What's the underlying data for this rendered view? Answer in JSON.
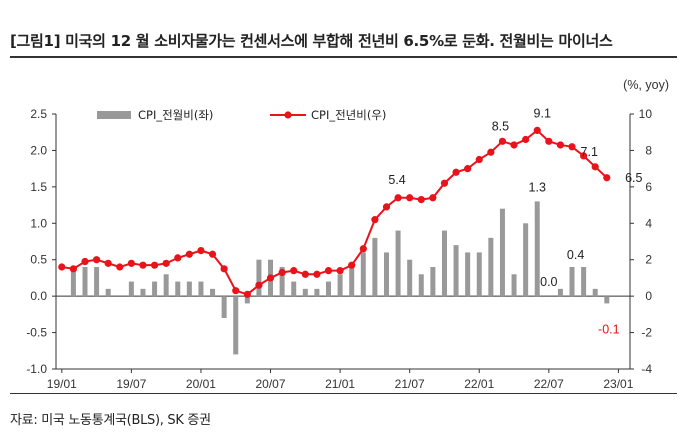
{
  "title": "[그림1] 미국의 12 월 소비자물가는 컨센서스에 부합해 전년비 6.5%로 둔화. 전월비는 마이너스",
  "source": "자료: 미국 노동통계국(BLS), SK 증권",
  "colors": {
    "bar": "#999999",
    "line": "#e8131b",
    "axis": "#333333"
  },
  "chart_data": {
    "type": "bar+line",
    "unit_label": "(%, yoy)",
    "x_ticks": [
      "19/01",
      "19/07",
      "20/01",
      "20/07",
      "21/01",
      "21/07",
      "22/01",
      "22/07",
      "23/01"
    ],
    "x": [
      "19/01",
      "19/02",
      "19/03",
      "19/04",
      "19/05",
      "19/06",
      "19/07",
      "19/08",
      "19/09",
      "19/10",
      "19/11",
      "19/12",
      "20/01",
      "20/02",
      "20/03",
      "20/04",
      "20/05",
      "20/06",
      "20/07",
      "20/08",
      "20/09",
      "20/10",
      "20/11",
      "20/12",
      "21/01",
      "21/02",
      "21/03",
      "21/04",
      "21/05",
      "21/06",
      "21/07",
      "21/08",
      "21/09",
      "21/10",
      "21/11",
      "21/12",
      "22/01",
      "22/02",
      "22/03",
      "22/04",
      "22/05",
      "22/06",
      "22/07",
      "22/08",
      "22/09",
      "22/10",
      "22/11",
      "22/12"
    ],
    "left_axis": {
      "ylim": [
        -1.0,
        2.5
      ],
      "ticks": [
        "-1.0",
        "-0.5",
        "0.0",
        "0.5",
        "1.0",
        "1.5",
        "2.0",
        "2.5"
      ]
    },
    "right_axis": {
      "ylim": [
        -4,
        10
      ],
      "ticks": [
        "-4",
        "-2",
        "0",
        "2",
        "4",
        "6",
        "8",
        "10"
      ]
    },
    "series": [
      {
        "name": "CPI_전월비(좌)",
        "type": "bar",
        "axis": "left",
        "values": [
          0.0,
          0.4,
          0.4,
          0.4,
          0.1,
          0.0,
          0.2,
          0.1,
          0.2,
          0.3,
          0.2,
          0.2,
          0.2,
          0.1,
          -0.3,
          -0.8,
          -0.1,
          0.5,
          0.5,
          0.4,
          0.2,
          0.1,
          0.1,
          0.2,
          0.3,
          0.4,
          0.6,
          0.8,
          0.6,
          0.9,
          0.5,
          0.3,
          0.4,
          0.9,
          0.7,
          0.6,
          0.6,
          0.8,
          1.2,
          0.3,
          1.0,
          1.3,
          0.0,
          0.1,
          0.4,
          0.4,
          0.1,
          -0.1
        ]
      },
      {
        "name": "CPI_전년비(우)",
        "type": "line",
        "axis": "right",
        "values": [
          1.6,
          1.5,
          1.9,
          2.0,
          1.8,
          1.6,
          1.8,
          1.7,
          1.7,
          1.8,
          2.1,
          2.3,
          2.5,
          2.3,
          1.5,
          0.3,
          0.1,
          0.6,
          1.0,
          1.3,
          1.4,
          1.2,
          1.2,
          1.4,
          1.4,
          1.7,
          2.6,
          4.2,
          4.9,
          5.4,
          5.4,
          5.3,
          5.4,
          6.2,
          6.8,
          7.0,
          7.5,
          7.9,
          8.5,
          8.3,
          8.6,
          9.1,
          8.5,
          8.3,
          8.2,
          7.7,
          7.1,
          6.5
        ]
      }
    ],
    "annotations": [
      {
        "series": 0,
        "index": 41,
        "text": "1.3"
      },
      {
        "series": 0,
        "index": 42,
        "text": "0.0"
      },
      {
        "series": 0,
        "index": 45,
        "text": "0.4"
      },
      {
        "series": 0,
        "index": 47,
        "text": "-0.1"
      },
      {
        "series": 1,
        "index": 29,
        "text": "5.4"
      },
      {
        "series": 1,
        "index": 38,
        "text": "8.5"
      },
      {
        "series": 1,
        "index": 41,
        "text": "9.1"
      },
      {
        "series": 1,
        "index": 46,
        "text": "7.1"
      },
      {
        "series": 1,
        "index": 47,
        "text": "6.5"
      }
    ]
  }
}
